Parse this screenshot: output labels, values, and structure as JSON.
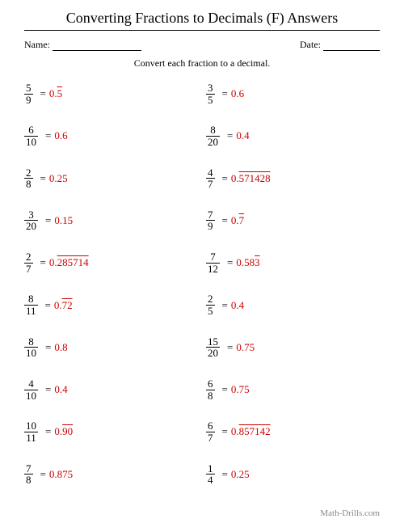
{
  "title": "Converting Fractions to Decimals (F) Answers",
  "nameLabel": "Name:",
  "dateLabel": "Date:",
  "instruction": "Convert each fraction to a decimal.",
  "footer": "Math-Drills.com",
  "nameBlankWidth": 110,
  "dateBlankWidth": 70,
  "answerColor": "#cc0000",
  "problems": [
    {
      "num": "5",
      "den": "9",
      "pre": "0.",
      "rep": "5",
      "post": ""
    },
    {
      "num": "3",
      "den": "5",
      "pre": "0.6",
      "rep": "",
      "post": ""
    },
    {
      "num": "6",
      "den": "10",
      "pre": "0.6",
      "rep": "",
      "post": ""
    },
    {
      "num": "8",
      "den": "20",
      "pre": "0.4",
      "rep": "",
      "post": ""
    },
    {
      "num": "2",
      "den": "8",
      "pre": "0.25",
      "rep": "",
      "post": ""
    },
    {
      "num": "4",
      "den": "7",
      "pre": "0.",
      "rep": "571428",
      "post": ""
    },
    {
      "num": "3",
      "den": "20",
      "pre": "0.15",
      "rep": "",
      "post": ""
    },
    {
      "num": "7",
      "den": "9",
      "pre": "0.",
      "rep": "7",
      "post": ""
    },
    {
      "num": "2",
      "den": "7",
      "pre": "0.",
      "rep": "285714",
      "post": ""
    },
    {
      "num": "7",
      "den": "12",
      "pre": "0.58",
      "rep": "3",
      "post": ""
    },
    {
      "num": "8",
      "den": "11",
      "pre": "0.",
      "rep": "72",
      "post": ""
    },
    {
      "num": "2",
      "den": "5",
      "pre": "0.4",
      "rep": "",
      "post": ""
    },
    {
      "num": "8",
      "den": "10",
      "pre": "0.8",
      "rep": "",
      "post": ""
    },
    {
      "num": "15",
      "den": "20",
      "pre": "0.75",
      "rep": "",
      "post": ""
    },
    {
      "num": "4",
      "den": "10",
      "pre": "0.4",
      "rep": "",
      "post": ""
    },
    {
      "num": "6",
      "den": "8",
      "pre": "0.75",
      "rep": "",
      "post": ""
    },
    {
      "num": "10",
      "den": "11",
      "pre": "0.",
      "rep": "90",
      "post": ""
    },
    {
      "num": "6",
      "den": "7",
      "pre": "0.",
      "rep": "857142",
      "post": ""
    },
    {
      "num": "7",
      "den": "8",
      "pre": "0.875",
      "rep": "",
      "post": ""
    },
    {
      "num": "1",
      "den": "4",
      "pre": "0.25",
      "rep": "",
      "post": ""
    }
  ]
}
